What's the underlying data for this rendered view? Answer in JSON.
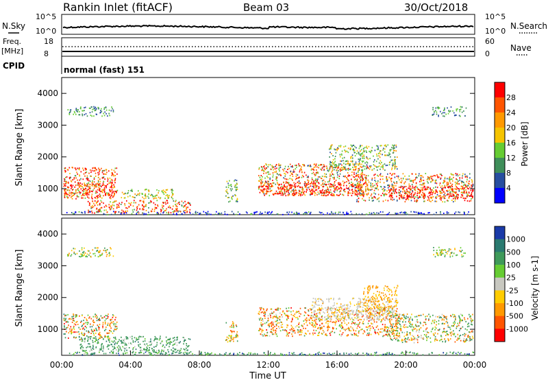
{
  "header": {
    "station": "Rankin Inlet (fitACF)",
    "beam": "Beam 03",
    "date": "30/Oct/2018"
  },
  "top_panels": {
    "nsky_label": "N.Sky",
    "nsearch_label": "N.Search",
    "nsky_ticks": [
      "10^5",
      "10^0"
    ],
    "nsearch_ticks": [
      "10^5",
      "10^0"
    ],
    "freq_label": "Freq.",
    "freq_unit": "[MHz]",
    "freq_ticks": [
      "18",
      "8"
    ],
    "nave_label": "Nave",
    "nave_ticks": [
      "60",
      "0"
    ],
    "cpid_label": "CPID",
    "cpid_value": "normal (fast) 151"
  },
  "chart_data": [
    {
      "type": "heatmap",
      "title": "",
      "xlabel": "",
      "ylabel": "Slant Range [km]",
      "colorbar_label": "Power [dB]",
      "colorbar_ticks": [
        "28",
        "24",
        "20",
        "16",
        "12",
        "8",
        "4"
      ],
      "colorbar_colors": [
        "#0000ff",
        "#274ea0",
        "#3f8f5a",
        "#66cc33",
        "#f5c400",
        "#ff9900",
        "#ff5500",
        "#ff0000"
      ],
      "ylim": [
        180,
        4500
      ],
      "yticks": [
        "1000",
        "2000",
        "3000",
        "4000"
      ],
      "xlim": [
        "00:00",
        "24:00"
      ]
    },
    {
      "type": "heatmap",
      "title": "",
      "xlabel": "Time UT",
      "ylabel": "Slant Range [km]",
      "colorbar_label": "Velocity [m s-1]",
      "colorbar_ticks": [
        "1000",
        "500",
        "100",
        "25",
        "-25",
        "-100",
        "-500",
        "-1000"
      ],
      "colorbar_colors": [
        "#1a3aa8",
        "#2a7a70",
        "#3f9a5a",
        "#66cc33",
        "#c8c8c0",
        "#ffcc00",
        "#ff9900",
        "#ff5500",
        "#ff0000"
      ],
      "ylim": [
        180,
        4500
      ],
      "yticks": [
        "1000",
        "2000",
        "3000",
        "4000"
      ],
      "xticks": [
        "00:00",
        "04:00",
        "08:00",
        "12:00",
        "16:00",
        "20:00",
        "00:00"
      ]
    }
  ]
}
